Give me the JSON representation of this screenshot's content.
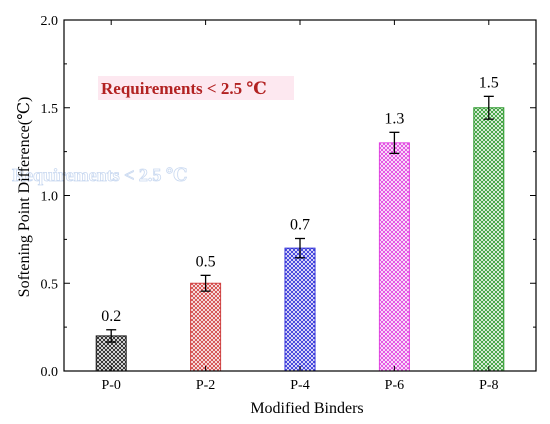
{
  "chart_data": {
    "type": "bar",
    "title": "",
    "xlabel": "Modified Binders",
    "ylabel": "Softening Point Difference(℃)",
    "categories": [
      "P-0",
      "P-2",
      "P-4",
      "P-6",
      "P-8"
    ],
    "values": [
      0.2,
      0.5,
      0.7,
      1.3,
      1.5
    ],
    "data_labels": [
      "0.2",
      "0.5",
      "0.7",
      "1.3",
      "1.5"
    ],
    "error": [
      0.035,
      0.045,
      0.055,
      0.06,
      0.065
    ],
    "ylim": [
      0.0,
      2.0
    ],
    "yticks": [
      0.0,
      0.5,
      1.0,
      1.5,
      2.0
    ],
    "ytick_labels": [
      "0.0",
      "0.5",
      "1.0",
      "1.5",
      "2.0"
    ],
    "bar_colors": [
      "#1a1a1a",
      "#d04040",
      "#2e2ed8",
      "#e040e0",
      "#2e9a2e"
    ],
    "bar_pattern": "crosshatch",
    "grid": false,
    "annotation": {
      "text": "Requirements < 2.5 ℃",
      "color": "#b22222",
      "highlight": "#fde8f0"
    },
    "ghost_text": "Requirements < 2.5 ℃"
  }
}
